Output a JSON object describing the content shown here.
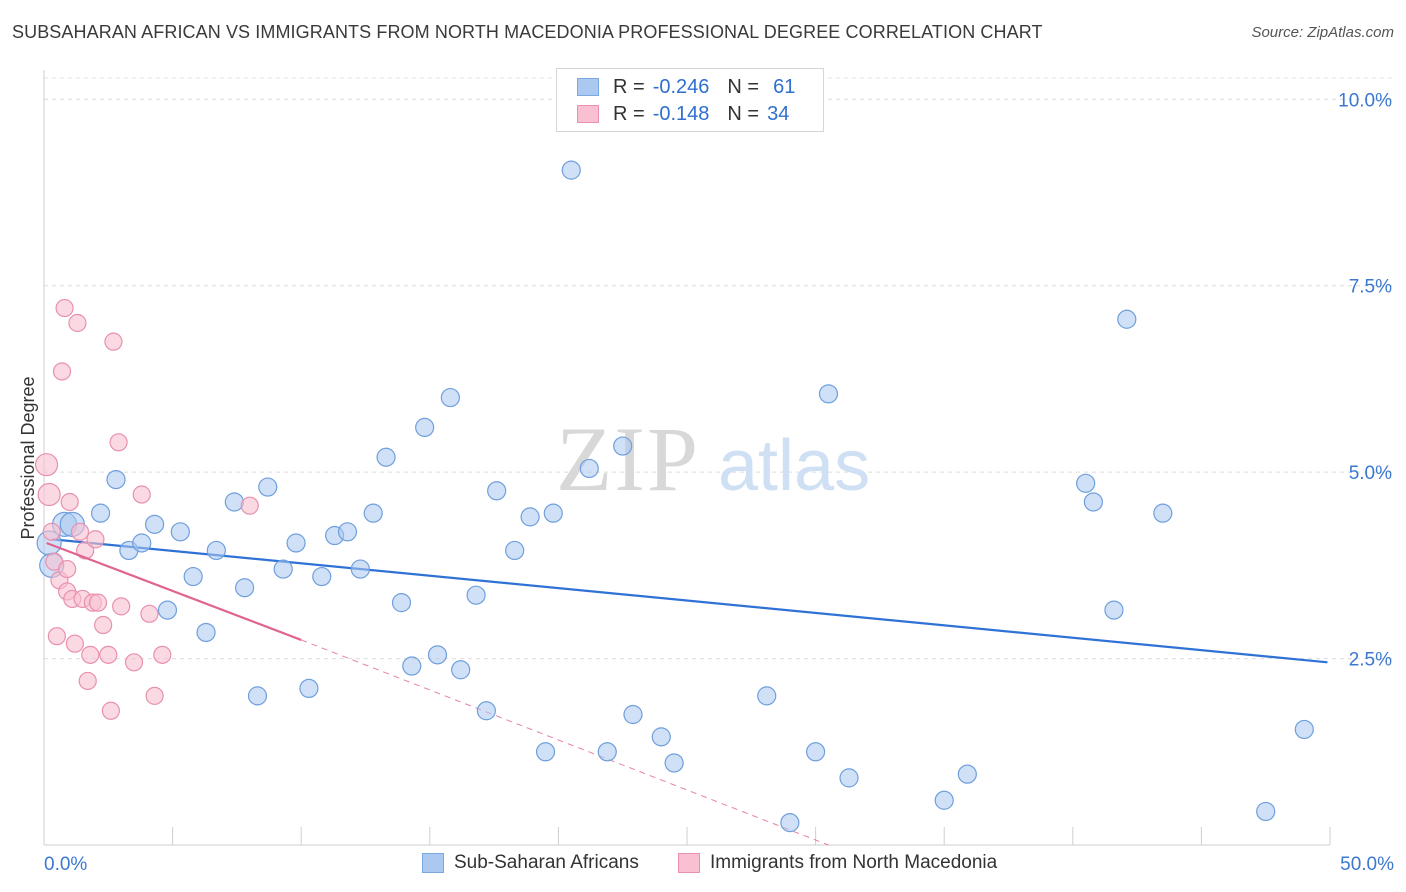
{
  "title": "SUBSAHARAN AFRICAN VS IMMIGRANTS FROM NORTH MACEDONIA PROFESSIONAL DEGREE CORRELATION CHART",
  "source": "Source: ZipAtlas.com",
  "watermark": {
    "zip": "ZIP",
    "atlas": "atlas"
  },
  "legend": {
    "rows": [
      {
        "r_label": "R =",
        "r_value": "-0.246",
        "n_label": "N =",
        "n_value": "61",
        "color": "#aac8f0",
        "border": "#7aa8e0"
      },
      {
        "r_label": "R =",
        "r_value": "-0.148",
        "n_label": "N =",
        "n_value": "34",
        "color": "#f8c0d0",
        "border": "#ea90b0"
      }
    ]
  },
  "bottom_legend": [
    {
      "label": "Sub-Saharan Africans",
      "color": "#aac8f0",
      "border": "#7aa8e0"
    },
    {
      "label": "Immigrants from North Macedonia",
      "color": "#f8c0d0",
      "border": "#ea90b0"
    }
  ],
  "chart_data": {
    "type": "scatter",
    "title": "SUBSAHARAN AFRICAN VS IMMIGRANTS FROM NORTH MACEDONIA PROFESSIONAL DEGREE CORRELATION CHART",
    "xlabel": "",
    "ylabel": "Professional Degree",
    "xlim": [
      0,
      50
    ],
    "ylim": [
      0,
      10.5
    ],
    "x_tick_labels": [
      "0.0%",
      "50.0%"
    ],
    "y_ticks": [
      2.5,
      5.0,
      7.5,
      10.0
    ],
    "y_tick_labels": [
      "2.5%",
      "5.0%",
      "7.5%",
      "10.0%"
    ],
    "grid": "horizontal dashed",
    "colors": {
      "blue_fill": "#aac8f0",
      "blue_stroke": "#6f9fdc",
      "blue_line": "#2f72d6",
      "pink_fill": "#f8c0d0",
      "pink_stroke": "#e890ae",
      "pink_line": "#e06490"
    },
    "series": [
      {
        "name": "Sub-Saharan Africans",
        "points": [
          [
            0.3,
            3.75
          ],
          [
            0.8,
            4.3
          ],
          [
            1.1,
            4.3
          ],
          [
            2.2,
            4.45
          ],
          [
            2.8,
            4.9
          ],
          [
            3.3,
            3.95
          ],
          [
            3.8,
            4.05
          ],
          [
            4.3,
            4.3
          ],
          [
            4.8,
            3.15
          ],
          [
            5.3,
            4.2
          ],
          [
            5.8,
            3.6
          ],
          [
            6.3,
            2.85
          ],
          [
            6.7,
            3.95
          ],
          [
            7.4,
            4.6
          ],
          [
            7.8,
            3.45
          ],
          [
            8.3,
            2.0
          ],
          [
            8.7,
            4.8
          ],
          [
            9.3,
            3.7
          ],
          [
            9.8,
            4.05
          ],
          [
            10.3,
            2.1
          ],
          [
            10.8,
            3.6
          ],
          [
            11.3,
            4.15
          ],
          [
            11.8,
            4.2
          ],
          [
            12.3,
            3.7
          ],
          [
            12.8,
            4.45
          ],
          [
            13.3,
            5.2
          ],
          [
            13.9,
            3.25
          ],
          [
            14.3,
            2.4
          ],
          [
            14.8,
            5.6
          ],
          [
            15.3,
            2.55
          ],
          [
            15.8,
            6.0
          ],
          [
            16.2,
            2.35
          ],
          [
            16.8,
            3.35
          ],
          [
            17.2,
            1.8
          ],
          [
            17.6,
            4.75
          ],
          [
            18.3,
            3.95
          ],
          [
            18.9,
            4.4
          ],
          [
            19.5,
            1.25
          ],
          [
            19.8,
            4.45
          ],
          [
            20.5,
            9.05
          ],
          [
            21.2,
            5.05
          ],
          [
            21.9,
            1.25
          ],
          [
            22.5,
            5.35
          ],
          [
            22.9,
            1.75
          ],
          [
            24.0,
            1.45
          ],
          [
            24.5,
            1.1
          ],
          [
            28.1,
            2.0
          ],
          [
            29.0,
            0.3
          ],
          [
            30.0,
            1.25
          ],
          [
            30.5,
            6.05
          ],
          [
            31.3,
            0.9
          ],
          [
            35.0,
            0.6
          ],
          [
            35.9,
            0.95
          ],
          [
            40.5,
            4.85
          ],
          [
            40.8,
            4.6
          ],
          [
            41.6,
            3.15
          ],
          [
            42.1,
            7.05
          ],
          [
            43.5,
            4.45
          ],
          [
            47.5,
            0.45
          ],
          [
            49.0,
            1.55
          ],
          [
            0.2,
            4.05
          ]
        ],
        "trend": {
          "x": [
            0.3,
            49.9
          ],
          "y": [
            4.1,
            2.45
          ]
        }
      },
      {
        "name": "Immigrants from North Macedonia",
        "points": [
          [
            0.1,
            5.1
          ],
          [
            0.2,
            4.7
          ],
          [
            0.3,
            4.2
          ],
          [
            0.4,
            3.8
          ],
          [
            0.5,
            2.8
          ],
          [
            0.6,
            3.55
          ],
          [
            0.7,
            6.35
          ],
          [
            0.8,
            7.2
          ],
          [
            0.9,
            3.4
          ],
          [
            1.0,
            4.6
          ],
          [
            1.1,
            3.3
          ],
          [
            1.2,
            2.7
          ],
          [
            1.3,
            7.0
          ],
          [
            1.4,
            4.2
          ],
          [
            1.5,
            3.3
          ],
          [
            1.6,
            3.95
          ],
          [
            1.7,
            2.2
          ],
          [
            1.8,
            2.55
          ],
          [
            1.9,
            3.25
          ],
          [
            2.0,
            4.1
          ],
          [
            2.1,
            3.25
          ],
          [
            2.3,
            2.95
          ],
          [
            2.5,
            2.55
          ],
          [
            2.6,
            1.8
          ],
          [
            2.7,
            6.75
          ],
          [
            2.9,
            5.4
          ],
          [
            3.0,
            3.2
          ],
          [
            3.5,
            2.45
          ],
          [
            3.8,
            4.7
          ],
          [
            4.1,
            3.1
          ],
          [
            4.6,
            2.55
          ],
          [
            4.3,
            2.0
          ],
          [
            8.0,
            4.55
          ],
          [
            0.9,
            3.7
          ]
        ],
        "trend": {
          "x": [
            0.1,
            10.0
          ],
          "y": [
            4.05,
            2.75
          ]
        },
        "trend_extension": {
          "x": [
            10.0,
            30.5
          ],
          "y": [
            2.75,
            0.0
          ]
        }
      }
    ]
  }
}
